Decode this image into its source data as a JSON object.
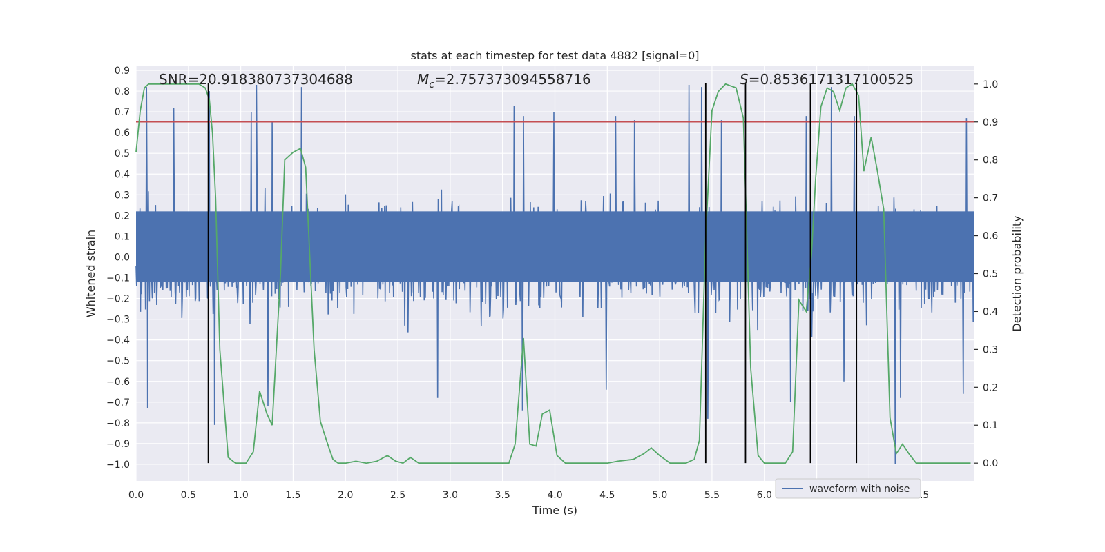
{
  "chart_data": {
    "type": "line",
    "title": "stats at each timestep for test data 4882 [signal=0]",
    "xlabel": "Time (s)",
    "ylabel_left": "Whitened strain",
    "ylabel_right": "Detection probability",
    "xlim": [
      0.0,
      8.0
    ],
    "ylim_left": [
      -1.08,
      0.92
    ],
    "ylim_right": [
      -0.047,
      1.047
    ],
    "x_ticks": [
      "0.0",
      "0.5",
      "1.0",
      "1.5",
      "2.0",
      "2.5",
      "3.0",
      "3.5",
      "4.0",
      "4.5",
      "5.0",
      "5.5",
      "6.0",
      "6.5",
      "7.0",
      "7.5"
    ],
    "y_ticks_left": [
      "0.9",
      "0.8",
      "0.7",
      "0.6",
      "0.5",
      "0.4",
      "0.3",
      "0.2",
      "0.1",
      "0.0",
      "−0.1",
      "−0.2",
      "−0.3",
      "−0.4",
      "−0.5",
      "−0.6",
      "−0.7",
      "−0.8",
      "−0.9",
      "−1.0"
    ],
    "y_ticks_right": [
      "1.0",
      "0.9",
      "0.8",
      "0.7",
      "0.6",
      "0.5",
      "0.4",
      "0.3",
      "0.2",
      "0.1",
      "0.0"
    ],
    "grid": true,
    "legend": {
      "position": "lower-right",
      "entries": [
        "waveform with noise"
      ]
    },
    "annotations": {
      "snr": "SNR=20.918380737304688",
      "mc_symbol": "M",
      "mc_sub": "c",
      "mc_value": "=2.757373094558716",
      "s_symbol": "S",
      "s_value": "=0.8536171317100525"
    },
    "threshold_right": 0.9,
    "vertical_lines_x": [
      0.69,
      5.44,
      5.82,
      6.44,
      6.88
    ],
    "waveform": {
      "name": "waveform with noise",
      "core_band": [
        -0.12,
        0.22
      ],
      "typical_envelope": [
        -0.48,
        0.48
      ],
      "spikes": [
        [
          0.1,
          0.82
        ],
        [
          0.36,
          0.72
        ],
        [
          0.7,
          0.8
        ],
        [
          1.1,
          0.7
        ],
        [
          1.15,
          0.83
        ],
        [
          1.3,
          0.65
        ],
        [
          1.58,
          0.82
        ],
        [
          3.61,
          0.73
        ],
        [
          3.7,
          0.68
        ],
        [
          3.99,
          0.7
        ],
        [
          4.58,
          0.68
        ],
        [
          4.76,
          0.66
        ],
        [
          5.28,
          0.83
        ],
        [
          5.4,
          0.82
        ],
        [
          5.59,
          0.66
        ],
        [
          6.4,
          0.68
        ],
        [
          6.64,
          0.82
        ],
        [
          6.86,
          0.68
        ],
        [
          7.93,
          0.67
        ],
        [
          0.11,
          -0.73
        ],
        [
          0.75,
          -0.81
        ],
        [
          1.26,
          -0.72
        ],
        [
          2.88,
          -0.68
        ],
        [
          3.69,
          -0.74
        ],
        [
          4.49,
          -0.64
        ],
        [
          5.46,
          -0.78
        ],
        [
          6.25,
          -0.7
        ],
        [
          6.76,
          -0.6
        ],
        [
          7.25,
          -1.0
        ],
        [
          7.3,
          -0.68
        ],
        [
          7.9,
          -0.66
        ]
      ]
    },
    "probability": {
      "x": [
        0.0,
        0.04,
        0.08,
        0.12,
        0.18,
        0.3,
        0.45,
        0.6,
        0.66,
        0.7,
        0.73,
        0.76,
        0.8,
        0.88,
        0.95,
        1.05,
        1.12,
        1.18,
        1.25,
        1.3,
        1.38,
        1.42,
        1.5,
        1.57,
        1.62,
        1.7,
        1.76,
        1.83,
        1.88,
        1.93,
        2.0,
        2.1,
        2.2,
        2.3,
        2.4,
        2.48,
        2.55,
        2.62,
        2.7,
        2.8,
        3.0,
        3.2,
        3.4,
        3.56,
        3.62,
        3.7,
        3.76,
        3.82,
        3.88,
        3.95,
        4.02,
        4.1,
        4.2,
        4.35,
        4.5,
        4.6,
        4.75,
        4.85,
        4.92,
        5.0,
        5.1,
        5.25,
        5.33,
        5.38,
        5.44,
        5.5,
        5.56,
        5.63,
        5.73,
        5.8,
        5.87,
        5.94,
        6.0,
        6.1,
        6.2,
        6.27,
        6.33,
        6.4,
        6.45,
        6.49,
        6.54,
        6.6,
        6.66,
        6.72,
        6.78,
        6.84,
        6.9,
        6.95,
        7.02,
        7.08,
        7.14,
        7.2,
        7.26,
        7.32,
        7.38,
        7.45,
        7.6,
        7.8,
        7.97
      ],
      "y": [
        0.82,
        0.93,
        0.99,
        1.0,
        1.0,
        1.0,
        1.0,
        1.0,
        0.99,
        0.96,
        0.87,
        0.7,
        0.3,
        0.015,
        0.0,
        0.0,
        0.03,
        0.19,
        0.13,
        0.1,
        0.5,
        0.8,
        0.82,
        0.83,
        0.78,
        0.3,
        0.11,
        0.05,
        0.01,
        0.0,
        0.0,
        0.005,
        0.0,
        0.005,
        0.02,
        0.005,
        0.0,
        0.015,
        0.0,
        0.0,
        0.0,
        0.0,
        0.0,
        0.0,
        0.05,
        0.33,
        0.05,
        0.045,
        0.13,
        0.14,
        0.02,
        0.0,
        0.0,
        0.0,
        0.0,
        0.005,
        0.01,
        0.025,
        0.04,
        0.02,
        0.0,
        0.0,
        0.01,
        0.06,
        0.6,
        0.93,
        0.98,
        1.0,
        0.99,
        0.91,
        0.25,
        0.02,
        0.0,
        0.0,
        0.0,
        0.03,
        0.43,
        0.4,
        0.55,
        0.75,
        0.94,
        0.99,
        0.98,
        0.93,
        0.99,
        1.0,
        0.97,
        0.77,
        0.86,
        0.77,
        0.67,
        0.12,
        0.025,
        0.05,
        0.025,
        0.0,
        0.0,
        0.0,
        0.0
      ]
    },
    "colors": {
      "background": "#eaeaf2",
      "grid": "#ffffff",
      "waveform": "#4c72b0",
      "probability": "#55a868",
      "threshold": "#c44e52",
      "vlines": "#000000",
      "text": "#262626"
    }
  }
}
